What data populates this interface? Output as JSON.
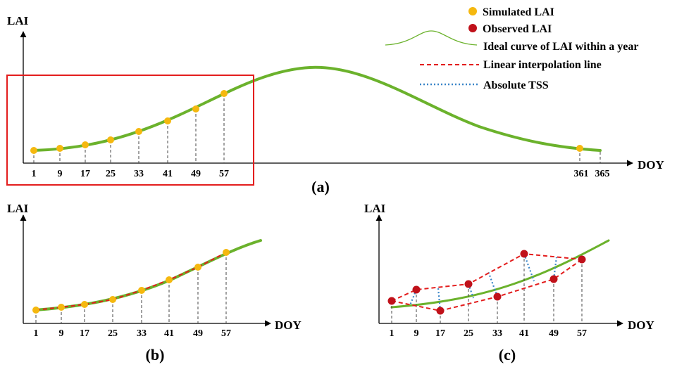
{
  "panel_a": {
    "y_label": "LAI",
    "x_label": "DOY",
    "panel_label": "(a)",
    "ticks": [
      "1",
      "9",
      "17",
      "25",
      "33",
      "41",
      "49",
      "57",
      "361",
      "365"
    ]
  },
  "panel_b": {
    "y_label": "LAI",
    "x_label": "DOY",
    "panel_label": "(b)",
    "ticks": [
      "1",
      "9",
      "17",
      "25",
      "33",
      "41",
      "49",
      "57"
    ]
  },
  "panel_c": {
    "y_label": "LAI",
    "x_label": "DOY",
    "panel_label": "(c)",
    "ticks": [
      "1",
      "9",
      "17",
      "25",
      "33",
      "41",
      "49",
      "57"
    ]
  },
  "legend": {
    "simulated": "Simulated LAI",
    "observed": "Observed LAI",
    "ideal": "Ideal curve of LAI within a year",
    "linear": "Linear interpolation line",
    "tss": "Absolute TSS"
  },
  "colors": {
    "simulated_point": "#f5b80f",
    "observed_point": "#c0111a",
    "ideal_curve": "#6bb22c",
    "interp_line": "#e31d1d",
    "tss_line": "#3a86c8",
    "highlight_box": "#e31d1d"
  }
}
